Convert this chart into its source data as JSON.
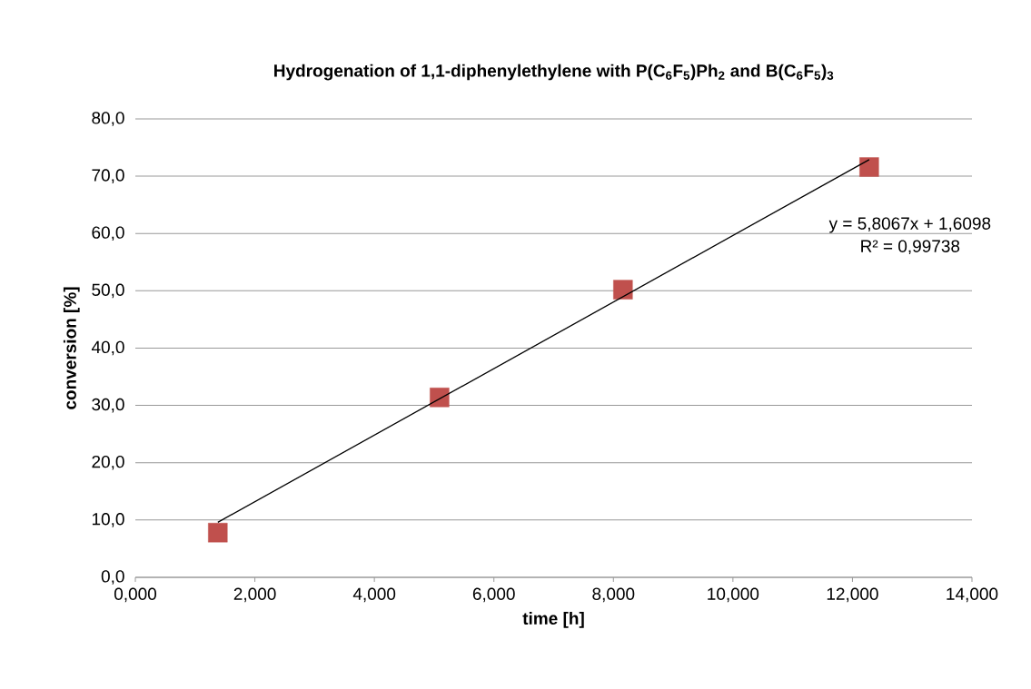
{
  "chart_data": {
    "type": "scatter",
    "title": "Hydrogenation of 1,1-diphenylethylene with P(C$_{6}$F$_{5}$)Ph$_{2}$   and B(C$_{6}$F$_{5}$)$_{3}$",
    "xlabel": "time [h]",
    "ylabel": "conversion [%]",
    "series": [
      {
        "marker": "square",
        "color": "#c0504d",
        "x": [
          1.38,
          5.09,
          8.16,
          12.28
        ],
        "values": [
          7.8,
          31.4,
          50.2,
          71.6
        ]
      },
      {
        "type": "line",
        "marker": "none",
        "color": "#000000",
        "x": [
          1.38,
          12.28
        ],
        "values": [
          9.6,
          72.9
        ]
      }
    ],
    "xlim": [
      0,
      14
    ],
    "ylim": [
      0,
      80
    ],
    "xticks": [
      {
        "value": 0,
        "label": "0,000"
      },
      {
        "value": 2,
        "label": "2,000"
      },
      {
        "value": 4,
        "label": "4,000"
      },
      {
        "value": 6,
        "label": "6,000"
      },
      {
        "value": 8,
        "label": "8,000"
      },
      {
        "value": 10,
        "label": "10,000"
      },
      {
        "value": 12,
        "label": "12,000"
      },
      {
        "value": 14,
        "label": "14,000"
      }
    ],
    "yticks": [
      {
        "value": 0,
        "label": "0,0"
      },
      {
        "value": 10,
        "label": "10,0"
      },
      {
        "value": 20,
        "label": "20,0"
      },
      {
        "value": 30,
        "label": "30,0"
      },
      {
        "value": 40,
        "label": "40,0"
      },
      {
        "value": 50,
        "label": "50,0"
      },
      {
        "value": 60,
        "label": "60,0"
      },
      {
        "value": 70,
        "label": "70,0"
      },
      {
        "value": 80,
        "label": "80,0"
      }
    ],
    "annotations": [
      "y = 5,8067x + 1,6098",
      "R² = 0,99738"
    ],
    "grid": "y"
  }
}
